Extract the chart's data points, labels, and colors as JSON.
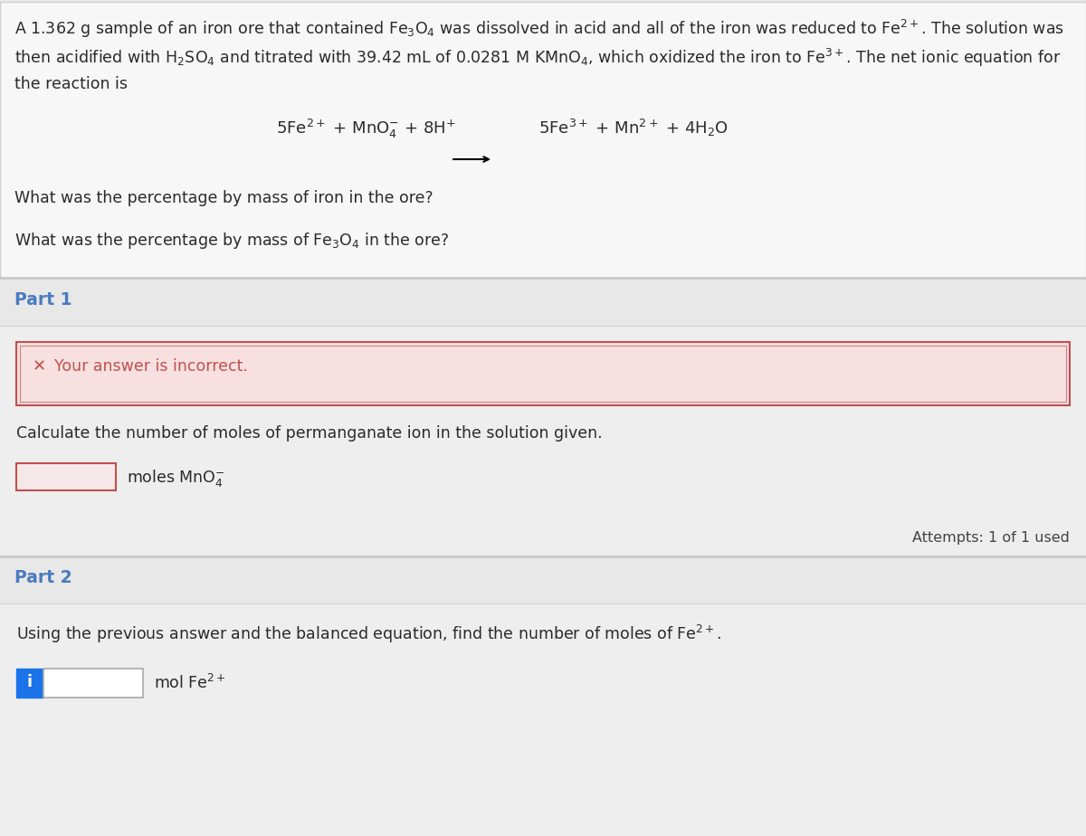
{
  "page_bg": "#e8e8e8",
  "top_section_bg": "#f7f7f7",
  "top_section_border": "#d0d0d0",
  "part_header_bg": "#e8e8e8",
  "part_inner_bg": "#f2f2f2",
  "part_inner_border": "#d0d0d0",
  "error_box_bg": "#f9e0e0",
  "error_box_border": "#c0504d",
  "error_box_border2": "#d08080",
  "input1_bg": "#f5e8e8",
  "input1_border": "#c0504d",
  "input2_bg": "#ffffff",
  "input2_border": "#aaaaaa",
  "info_btn_bg": "#1a73e8",
  "info_btn_fg": "#ffffff",
  "part_label_color": "#4a7abf",
  "text_color": "#2a2a2a",
  "gray_text": "#555555",
  "attempts_color": "#444444",
  "divider_top": "#c8c8c8",
  "divider_inner": "#d8d8d8",
  "top_text_line1": "A 1.362 g sample of an iron ore that contained Fe$_3$O$_4$ was dissolved in acid and all of the iron was reduced to Fe$^{2+}$. The solution was",
  "top_text_line2": "then acidified with H$_2$SO$_4$ and titrated with 39.42 mL of 0.0281 M KMnO$_4$, which oxidized the iron to Fe$^{3+}$. The net ionic equation for",
  "top_text_line3": "the reaction is",
  "eq_left": "5Fe$^{2+}$ + MnO$_4^{-}$ + 8H$^{+}$",
  "eq_right": "5Fe$^{3+}$ + Mn$^{2+}$ + 4H$_2$O",
  "q1": "What was the percentage by mass of iron in the ore?",
  "q2": "What was the percentage by mass of Fe$_3$O$_4$ in the ore?",
  "part1_label": "Part 1",
  "part2_label": "Part 2",
  "error_text": "Your answer is incorrect.",
  "part1_instr": "Calculate the number of moles of permanganate ion in the solution given.",
  "part1_unit": "moles MnO$_4^{-}$",
  "attempts_text": "Attempts: 1 of 1 used",
  "part2_instr": "Using the previous answer and the balanced equation, find the number of moles of Fe$^{2+}$.",
  "part2_unit": "mol Fe$^{2+}$",
  "font_size_body": 12.5,
  "font_size_part": 13.5,
  "font_size_eq": 13.0,
  "font_size_attempts": 11.5
}
